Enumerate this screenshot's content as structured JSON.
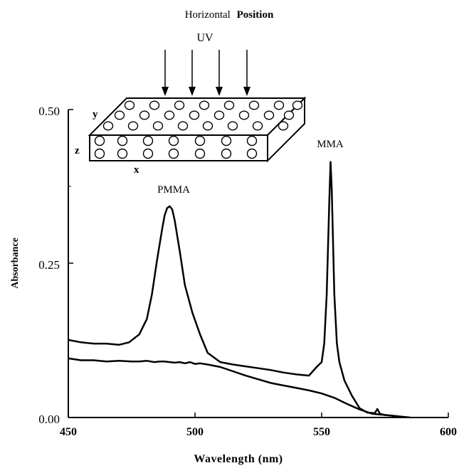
{
  "header": {
    "title_plain": "Horizontal",
    "title_bold": "Position"
  },
  "inset": {
    "uv_label": "UV",
    "axis_y": "y",
    "axis_z": "z",
    "axis_x": "x"
  },
  "chart_data": {
    "type": "line",
    "xlabel": "Wavelength (nm)",
    "ylabel": "Absorbance",
    "xlim": [
      450,
      600
    ],
    "ylim": [
      0,
      0.5
    ],
    "x_ticks": [
      "450",
      "500",
      "550",
      "600"
    ],
    "y_ticks": [
      "0.00",
      "0.25",
      "0.50"
    ],
    "grid": false,
    "annotations": [
      "PMMA",
      "MMA"
    ],
    "series": [
      {
        "name": "PMMA",
        "x": [
          450,
          455,
          460,
          465,
          470,
          475,
          478,
          481,
          484,
          486,
          488,
          490,
          492,
          494,
          496,
          498,
          500,
          502,
          505,
          510,
          515,
          520,
          525,
          530,
          535,
          540,
          545,
          550,
          555,
          560,
          565,
          570,
          575,
          580
        ],
        "y": [
          0.096,
          0.093,
          0.093,
          0.091,
          0.092,
          0.091,
          0.091,
          0.092,
          0.09,
          0.091,
          0.091,
          0.09,
          0.089,
          0.09,
          0.088,
          0.09,
          0.087,
          0.088,
          0.086,
          0.082,
          0.075,
          0.068,
          0.062,
          0.056,
          0.052,
          0.048,
          0.044,
          0.039,
          0.032,
          0.022,
          0.013,
          0.006,
          0.004,
          0.002
        ]
      },
      {
        "name": "MMA",
        "x": [
          450,
          455,
          460,
          465,
          470,
          474,
          478,
          481,
          483,
          485,
          487,
          488,
          489,
          490,
          491,
          492,
          494,
          496,
          499,
          502,
          505,
          510,
          515,
          520,
          525,
          530,
          535,
          540,
          545,
          548,
          550,
          551,
          552,
          553,
          553.5,
          554,
          555,
          556,
          557,
          559,
          562,
          565,
          568,
          571,
          572,
          573,
          575,
          580,
          585
        ],
        "y": [
          0.126,
          0.122,
          0.12,
          0.12,
          0.118,
          0.122,
          0.135,
          0.16,
          0.2,
          0.255,
          0.305,
          0.328,
          0.34,
          0.343,
          0.338,
          0.32,
          0.27,
          0.215,
          0.17,
          0.135,
          0.105,
          0.09,
          0.086,
          0.083,
          0.08,
          0.077,
          0.073,
          0.07,
          0.068,
          0.082,
          0.09,
          0.12,
          0.2,
          0.35,
          0.415,
          0.37,
          0.2,
          0.12,
          0.09,
          0.06,
          0.035,
          0.015,
          0.008,
          0.007,
          0.014,
          0.006,
          0.004,
          0.002,
          0.0
        ]
      }
    ]
  }
}
